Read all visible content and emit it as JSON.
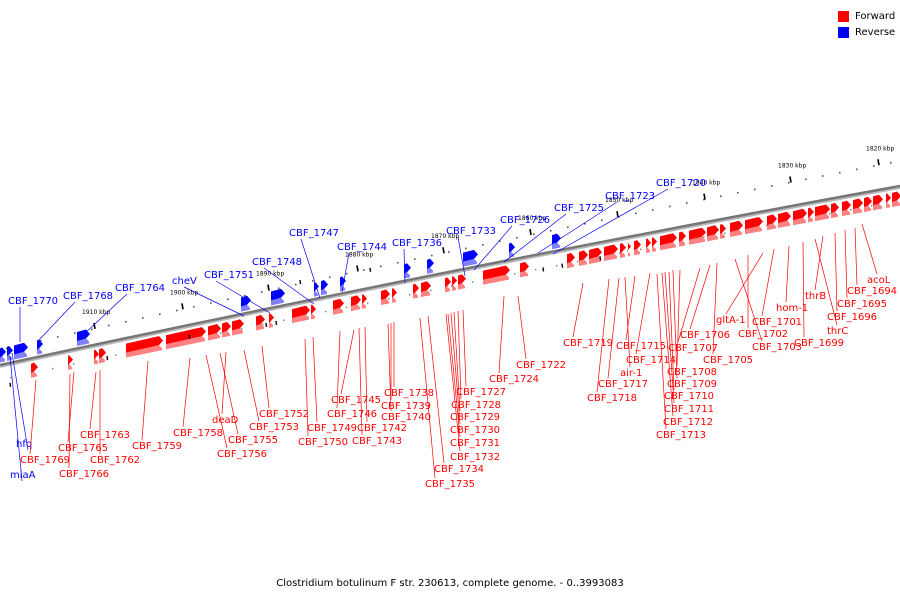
{
  "legend": {
    "forward_label": "Forward",
    "reverse_label": "Reverse"
  },
  "colors": {
    "forward": "#ff0000",
    "reverse": "#0000ff",
    "backbone": "#777777"
  },
  "caption": "Clostridium botulinum F str. 230613, complete genome. - 0..3993083",
  "chart_data": {
    "type": "genome-map",
    "ticks_kbp": [
      "1820 kbp",
      "1830 kbp",
      "1840 kbp",
      "1850 kbp",
      "1860 kbp",
      "1870 kbp",
      "1880 kbp",
      "1890 kbp",
      "1900 kbp",
      "1910 kbp"
    ],
    "reverse_labels": [
      "CBF_1720",
      "CBF_1723",
      "CBF_1725",
      "CBF_1726",
      "CBF_1733",
      "CBF_1736",
      "CBF_1744",
      "CBF_1747",
      "CBF_1748",
      "CBF_1751",
      "cheV",
      "CBF_1764",
      "CBF_1768",
      "CBF_1770",
      "hfq",
      "miaA"
    ],
    "forward_labels": [
      "acoL",
      "CBF_1694",
      "CBF_1695",
      "CBF_1696",
      "thrB",
      "thrC",
      "CBF_1699",
      "hom-1",
      "CBF_1701",
      "gltA-1",
      "CBF_1702",
      "CBF_1703",
      "CBF_1705",
      "CBF_1706",
      "CBF_1707",
      "CBF_1708",
      "CBF_1709",
      "CBF_1710",
      "CBF_1711",
      "CBF_1712",
      "CBF_1713",
      "CBF_1714",
      "CBF_1715",
      "air-1",
      "CBF_1717",
      "CBF_1718",
      "CBF_1719",
      "CBF_1722",
      "CBF_1724",
      "CBF_1727",
      "CBF_1728",
      "CBF_1729",
      "CBF_1730",
      "CBF_1731",
      "CBF_1732",
      "CBF_1734",
      "CBF_1735",
      "CBF_1738",
      "CBF_1739",
      "CBF_1740",
      "CBF_1742",
      "CBF_1743",
      "CBF_1745",
      "CBF_1746",
      "CBF_1749",
      "CBF_1750",
      "CBF_1752",
      "CBF_1753",
      "deaD",
      "CBF_1755",
      "CBF_1756",
      "CBF_1758",
      "CBF_1759",
      "CBF_1762",
      "CBF_1763",
      "CBF_1765",
      "CBF_1766",
      "CBF_1769"
    ]
  }
}
